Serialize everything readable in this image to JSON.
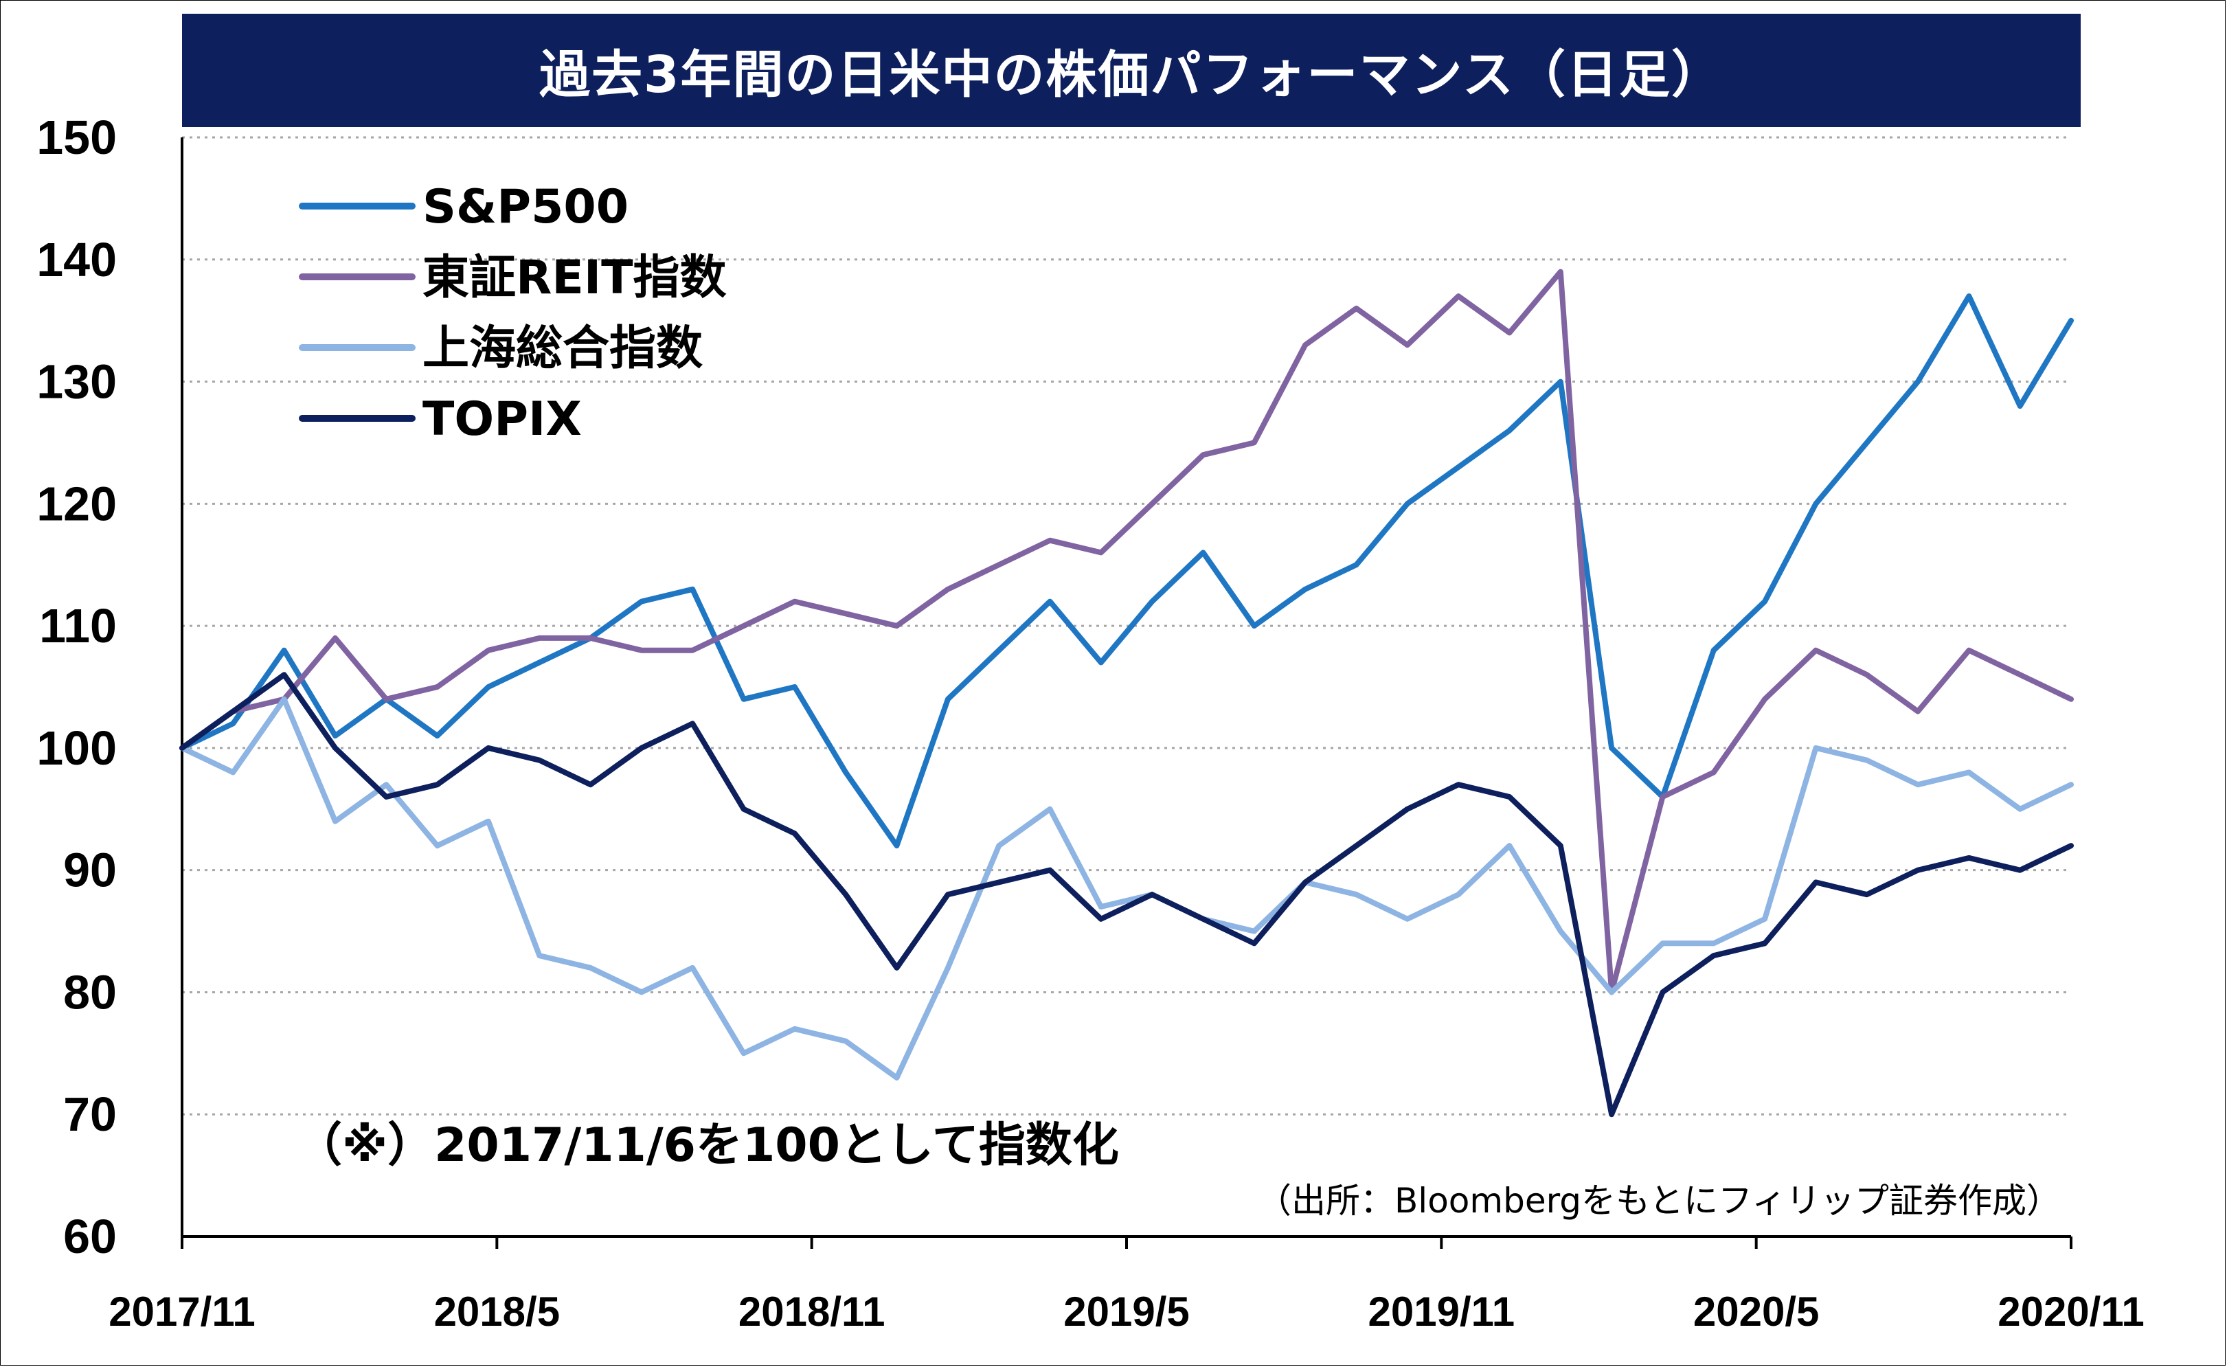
{
  "chart_data": {
    "type": "line",
    "title": "過去3年間の日米中の株価パフォーマンス（日足）",
    "ylim": [
      60,
      150
    ],
    "yticks": [
      "60",
      "70",
      "80",
      "90",
      "100",
      "110",
      "120",
      "130",
      "140",
      "150"
    ],
    "xticks": [
      "2017/11",
      "2018/5",
      "2018/11",
      "2019/5",
      "2019/11",
      "2020/5",
      "2020/11"
    ],
    "grid": "horizontal dotted",
    "legend_position": "top-left",
    "note": "（※）2017/11/6を100として指数化",
    "source": "（出所：Bloombergをもとにフィリップ証券作成）",
    "x_points": [
      "2017/11",
      "2017/12",
      "2018/1",
      "2018/2",
      "2018/3",
      "2018/4",
      "2018/5",
      "2018/6",
      "2018/7",
      "2018/8",
      "2018/9",
      "2018/10",
      "2018/11",
      "2018/12",
      "2019/1",
      "2019/2",
      "2019/3",
      "2019/4",
      "2019/5",
      "2019/6",
      "2019/7",
      "2019/8",
      "2019/9",
      "2019/10",
      "2019/11",
      "2019/12",
      "2020/1",
      "2020/2",
      "2020/3a",
      "2020/3b",
      "2020/4",
      "2020/5",
      "2020/6",
      "2020/7",
      "2020/8",
      "2020/9",
      "2020/10",
      "2020/11"
    ],
    "series": [
      {
        "name": "S&P500",
        "color": "#1f77c4",
        "values": [
          100,
          102,
          108,
          101,
          104,
          101,
          105,
          107,
          109,
          112,
          113,
          104,
          105,
          98,
          92,
          104,
          108,
          112,
          107,
          112,
          116,
          110,
          113,
          115,
          120,
          123,
          126,
          130,
          100,
          96,
          108,
          112,
          120,
          125,
          130,
          137,
          128,
          135
        ]
      },
      {
        "name": "東証REIT指数",
        "color": "#8064a2",
        "values": [
          100,
          103,
          104,
          109,
          104,
          105,
          108,
          109,
          109,
          108,
          108,
          110,
          112,
          111,
          110,
          113,
          115,
          117,
          116,
          120,
          124,
          125,
          133,
          136,
          133,
          137,
          134,
          139,
          80,
          96,
          98,
          104,
          108,
          106,
          103,
          108,
          106,
          104
        ]
      },
      {
        "name": "上海総合指数",
        "color": "#8db4e2",
        "values": [
          100,
          98,
          104,
          94,
          97,
          92,
          94,
          83,
          82,
          80,
          82,
          75,
          77,
          76,
          73,
          82,
          92,
          95,
          87,
          88,
          86,
          85,
          89,
          88,
          86,
          88,
          92,
          85,
          80,
          84,
          84,
          86,
          100,
          99,
          97,
          98,
          95,
          97
        ]
      },
      {
        "name": "TOPIX",
        "color": "#0d1f5c",
        "values": [
          100,
          103,
          106,
          100,
          96,
          97,
          100,
          99,
          97,
          100,
          102,
          95,
          93,
          88,
          82,
          88,
          89,
          90,
          86,
          88,
          86,
          84,
          89,
          92,
          95,
          97,
          96,
          92,
          70,
          80,
          83,
          84,
          89,
          88,
          90,
          91,
          90,
          92
        ]
      }
    ]
  }
}
